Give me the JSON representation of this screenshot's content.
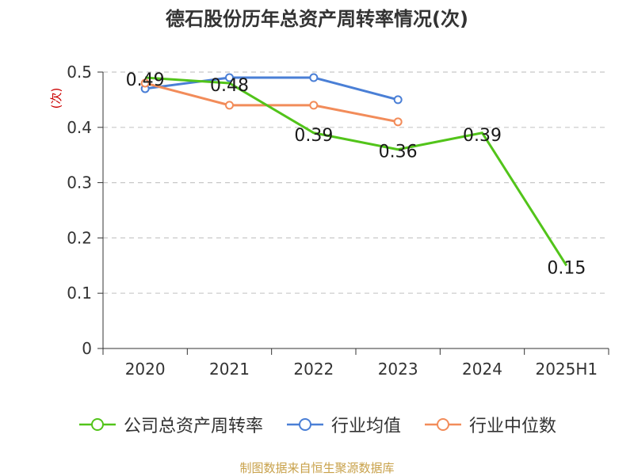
{
  "chart_data": {
    "type": "line",
    "title": "德石股份历年总资产周转率情况(次)",
    "ylabel": "(次)",
    "xlabel": "",
    "categories": [
      "2020",
      "2021",
      "2022",
      "2023",
      "2024",
      "2025H1"
    ],
    "ylim": [
      0,
      0.5
    ],
    "yticks": [
      0,
      0.1,
      0.2,
      0.3,
      0.4,
      0.5
    ],
    "ytick_labels": [
      "0",
      "0.1",
      "0.2",
      "0.3",
      "0.4",
      "0.5"
    ],
    "grid": true,
    "legend_position": "bottom",
    "series": [
      {
        "name": "公司总资产周转率",
        "color": "#52c41a",
        "values": [
          0.49,
          0.48,
          0.39,
          0.36,
          0.39,
          0.15
        ],
        "data_labels": [
          "0.49",
          "0.48",
          "0.39",
          "0.36",
          "0.39",
          "0.15"
        ]
      },
      {
        "name": "行业均值",
        "color": "#4a7fd6",
        "values": [
          0.47,
          0.49,
          0.49,
          0.45,
          null,
          null
        ]
      },
      {
        "name": "行业中位数",
        "color": "#f28c5a",
        "values": [
          0.48,
          0.44,
          0.44,
          0.41,
          null,
          null
        ]
      }
    ]
  },
  "footer": {
    "source": "制图数据来自恒生聚源数据库"
  }
}
